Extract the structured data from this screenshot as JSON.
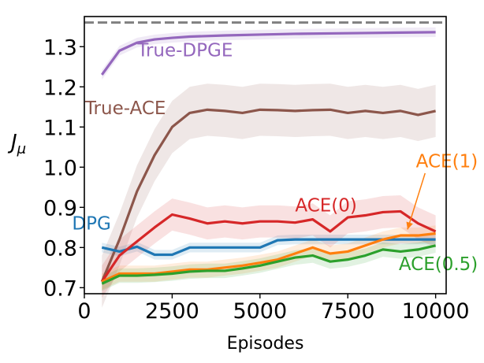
{
  "chart_data": {
    "type": "line",
    "title": "",
    "xlabel": "Episodes",
    "ylabel": "J_μ",
    "ylabel_main": "J",
    "ylabel_sub": "μ",
    "xlim": [
      0,
      10300
    ],
    "ylim": [
      0.685,
      1.375
    ],
    "xticks": [
      0,
      2500,
      5000,
      7500,
      10000
    ],
    "xtick_labels": [
      "0",
      "2500",
      "5000",
      "7500",
      "10000"
    ],
    "yticks": [
      0.7,
      0.8,
      0.9,
      1.0,
      1.1,
      1.2,
      1.3
    ],
    "ytick_labels": [
      "0.7",
      "0.8",
      "0.9",
      "1.0",
      "1.1",
      "1.2",
      "1.3"
    ],
    "grid": false,
    "legend": "inline labels",
    "reference_line": {
      "y": 1.36,
      "style": "dashed",
      "color": "#808080"
    },
    "series": [
      {
        "name": "True-DPGE",
        "color": "#9467bd",
        "x": [
          500,
          1000,
          1500,
          2000,
          2500,
          3000,
          4000,
          5000,
          6000,
          7000,
          8000,
          9000,
          10000
        ],
        "values": [
          1.23,
          1.29,
          1.31,
          1.318,
          1.322,
          1.325,
          1.328,
          1.33,
          1.332,
          1.333,
          1.334,
          1.335,
          1.336
        ],
        "band": 0.012,
        "label_at": [
          1510,
          1.276
        ]
      },
      {
        "name": "True-ACE",
        "color": "#8c564b",
        "x": [
          500,
          1000,
          1500,
          2000,
          2500,
          3000,
          3500,
          4000,
          4500,
          5000,
          5500,
          6000,
          6500,
          7000,
          7500,
          8000,
          8500,
          9000,
          9500,
          10000
        ],
        "values": [
          0.715,
          0.82,
          0.94,
          1.03,
          1.1,
          1.135,
          1.143,
          1.14,
          1.135,
          1.143,
          1.142,
          1.14,
          1.142,
          1.143,
          1.135,
          1.14,
          1.135,
          1.14,
          1.13,
          1.14
        ],
        "band": 0.065,
        "label_at": [
          20,
          1.132
        ]
      },
      {
        "name": "DPG",
        "color": "#1f77b4",
        "x": [
          500,
          1000,
          1500,
          2000,
          2500,
          3000,
          4000,
          5000,
          5500,
          6000,
          7000,
          8000,
          9000,
          10000
        ],
        "values": [
          0.8,
          0.79,
          0.802,
          0.782,
          0.782,
          0.8,
          0.8,
          0.8,
          0.818,
          0.82,
          0.82,
          0.82,
          0.82,
          0.82
        ],
        "band": 0.012,
        "label_at": [
          -350,
          0.845
        ]
      },
      {
        "name": "ACE(0)",
        "color": "#d62728",
        "x": [
          500,
          1000,
          1500,
          2000,
          2500,
          3000,
          3500,
          4000,
          4500,
          5000,
          5500,
          6000,
          6500,
          7000,
          7500,
          8000,
          8500,
          9000,
          9500,
          10000
        ],
        "values": [
          0.715,
          0.78,
          0.815,
          0.85,
          0.882,
          0.872,
          0.86,
          0.865,
          0.86,
          0.865,
          0.865,
          0.862,
          0.87,
          0.84,
          0.875,
          0.88,
          0.888,
          0.89,
          0.86,
          0.84
        ],
        "band": 0.04,
        "label_at": [
          6000,
          0.89
        ]
      },
      {
        "name": "ACE(1)",
        "color": "#ff7f0e",
        "x": [
          500,
          1000,
          1500,
          2000,
          2500,
          3000,
          3500,
          4000,
          4500,
          5000,
          5500,
          6000,
          6500,
          7000,
          7500,
          8000,
          8500,
          9000,
          9500,
          10000
        ],
        "values": [
          0.715,
          0.735,
          0.735,
          0.735,
          0.74,
          0.745,
          0.745,
          0.75,
          0.755,
          0.762,
          0.77,
          0.785,
          0.8,
          0.785,
          0.79,
          0.805,
          0.82,
          0.83,
          0.83,
          0.835
        ],
        "band": 0.02,
        "label_at": [
          9440,
          1.0
        ],
        "arrow": {
          "from": [
            9700,
            0.985
          ],
          "to": [
            9200,
            0.845
          ]
        }
      },
      {
        "name": "ACE(0.5)",
        "color": "#2ca02c",
        "x": [
          500,
          1000,
          1500,
          2000,
          2500,
          3000,
          3500,
          4000,
          4500,
          5000,
          5500,
          6000,
          6500,
          7000,
          7500,
          8000,
          8500,
          9000,
          9500,
          10000
        ],
        "values": [
          0.71,
          0.73,
          0.73,
          0.732,
          0.735,
          0.74,
          0.742,
          0.742,
          0.748,
          0.755,
          0.765,
          0.775,
          0.78,
          0.765,
          0.77,
          0.78,
          0.795,
          0.79,
          0.795,
          0.805
        ],
        "band": 0.018,
        "label_at": [
          8950,
          0.744
        ]
      }
    ]
  }
}
